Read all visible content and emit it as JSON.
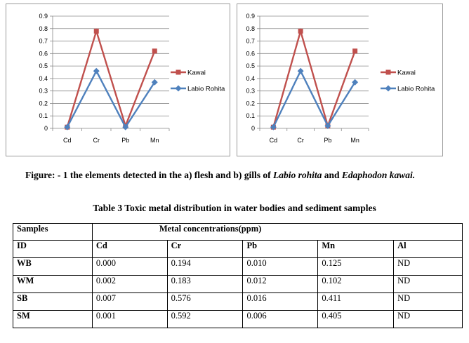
{
  "chart_data": [
    {
      "type": "line",
      "categories": [
        "Cd",
        "Cr",
        "Pb",
        "Mn"
      ],
      "ylim": [
        0,
        0.9
      ],
      "yticks": [
        "0",
        "0.1",
        "0.2",
        "0.3",
        "0.4",
        "0.5",
        "0.6",
        "0.7",
        "0.8",
        "0.9"
      ],
      "grid": true,
      "legend": "right",
      "series": [
        {
          "name": "Kawai",
          "color": "#c0504d",
          "marker": "square",
          "values": [
            0.01,
            0.78,
            0.02,
            0.62
          ]
        },
        {
          "name": "Labio Rohita",
          "color": "#4f81bd",
          "marker": "diamond",
          "values": [
            0.01,
            0.46,
            0.01,
            0.37
          ]
        }
      ]
    },
    {
      "type": "line",
      "categories": [
        "Cd",
        "Cr",
        "Pb",
        "Mn"
      ],
      "ylim": [
        0,
        0.9
      ],
      "yticks": [
        "0",
        "0.1",
        "0.2",
        "0.3",
        "0.4",
        "0.5",
        "0.6",
        "0.7",
        "0.8",
        "0.9"
      ],
      "grid": true,
      "legend": "right",
      "series": [
        {
          "name": "Kawai",
          "color": "#c0504d",
          "marker": "square",
          "values": [
            0.01,
            0.78,
            0.02,
            0.62
          ]
        },
        {
          "name": "Labio Rohita",
          "color": "#4f81bd",
          "marker": "diamond",
          "values": [
            0.01,
            0.46,
            0.02,
            0.37
          ]
        }
      ]
    }
  ],
  "caption": {
    "prefix": "Figure: - 1 the elements detected in the a) flesh and b) gills of ",
    "species1": "Labio rohita",
    "middle": " and ",
    "species2": "Edaphodon kawai."
  },
  "table": {
    "title": "Table 3 Toxic metal distribution in water bodies and sediment samples",
    "samples_header": "Samples",
    "group_header": "Metal concentrations(ppm)",
    "columns": [
      "ID",
      "Cd",
      "Cr",
      "Pb",
      "Mn",
      "Al"
    ],
    "rows": [
      [
        "WB",
        "0.000",
        "0.194",
        "0.010",
        "0.125",
        "ND"
      ],
      [
        "WM",
        "0.002",
        "0.183",
        "0.012",
        "0.102",
        "ND"
      ],
      [
        "SB",
        "0.007",
        "0.576",
        "0.016",
        "0.411",
        "ND"
      ],
      [
        "SM",
        "0.001",
        "0.592",
        "0.006",
        "0.405",
        "ND"
      ]
    ]
  }
}
